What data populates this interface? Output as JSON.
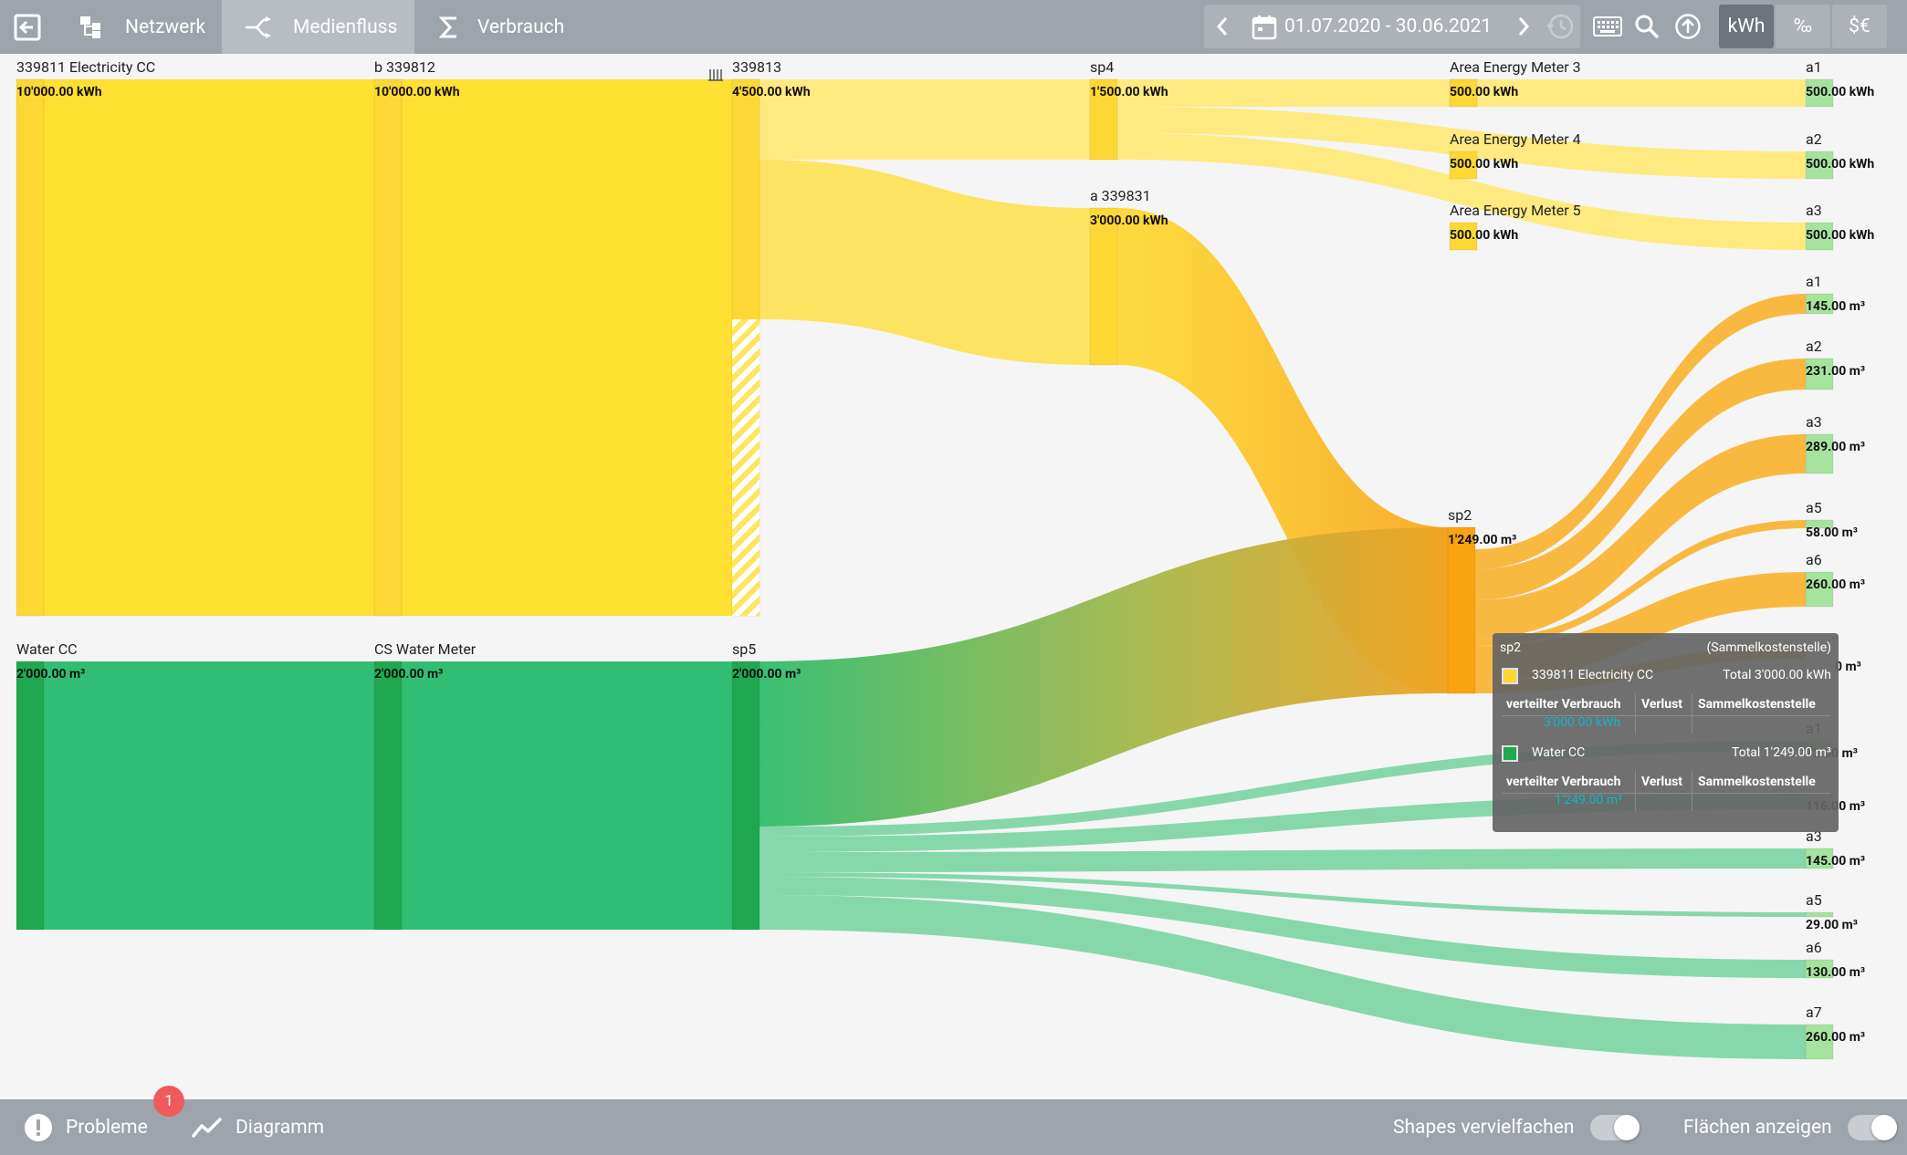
{
  "topbar": {
    "tabs": [
      {
        "label": "Netzwerk",
        "icon": "network-icon"
      },
      {
        "label": "Medienfluss",
        "icon": "flow-icon",
        "active": true
      },
      {
        "label": "Verbrauch",
        "icon": "sigma-icon"
      }
    ],
    "date_range": "01.07.2020 - 30.06.2021",
    "units": [
      {
        "label": "kWh",
        "active": true
      },
      {
        "label": "‰"
      },
      {
        "label": "$€"
      }
    ]
  },
  "chart_data": {
    "type": "sankey",
    "colors": {
      "electricity": "#fdd835",
      "water": "#2ebd6e",
      "sp2": "#f9a825"
    },
    "nodes": [
      {
        "id": "339811",
        "label": "339811 Electricity CC",
        "value": "10'000.00 kWh"
      },
      {
        "id": "b339812",
        "label": "b 339812",
        "value": "10'000.00 kWh"
      },
      {
        "id": "339813",
        "label": "339813",
        "value": "4'500.00 kWh"
      },
      {
        "id": "sp4",
        "label": "sp4",
        "value": "1'500.00 kWh"
      },
      {
        "id": "a339831",
        "label": "a 339831",
        "value": "3'000.00 kWh"
      },
      {
        "id": "aem3",
        "label": "Area Energy Meter 3",
        "value": "500.00 kWh"
      },
      {
        "id": "aem4",
        "label": "Area Energy Meter 4",
        "value": "500.00 kWh"
      },
      {
        "id": "aem5",
        "label": "Area Energy Meter 5",
        "value": "500.00 kWh"
      },
      {
        "id": "e_a1",
        "label": "a1",
        "value": "500.00 kWh"
      },
      {
        "id": "e_a2",
        "label": "a2",
        "value": "500.00 kWh"
      },
      {
        "id": "e_a3",
        "label": "a3",
        "value": "500.00 kWh"
      },
      {
        "id": "wcc",
        "label": "Water CC",
        "value": "2'000.00 m³"
      },
      {
        "id": "cswm",
        "label": "CS Water Meter",
        "value": "2'000.00 m³"
      },
      {
        "id": "sp5",
        "label": "sp5",
        "value": "2'000.00 m³"
      },
      {
        "id": "sp2",
        "label": "sp2",
        "value": "1'249.00 m³"
      },
      {
        "id": "s_a1",
        "label": "a1",
        "value": "145.00 m³"
      },
      {
        "id": "s_a2",
        "label": "a2",
        "value": "231.00 m³"
      },
      {
        "id": "s_a3",
        "label": "a3",
        "value": "289.00 m³"
      },
      {
        "id": "s_a5",
        "label": "a5",
        "value": "58.00 m³"
      },
      {
        "id": "s_a6",
        "label": "a6",
        "value": "260.00 m³"
      },
      {
        "id": "s_hidden",
        "label": "",
        "value": "0 m³"
      },
      {
        "id": "w_a1",
        "label": "a1",
        "value": "72.00 m³"
      },
      {
        "id": "w_a2",
        "label": "",
        "value": "116.00 m³"
      },
      {
        "id": "w_a3",
        "label": "a3",
        "value": "145.00 m³"
      },
      {
        "id": "w_a5",
        "label": "a5",
        "value": "29.00 m³"
      },
      {
        "id": "w_a6",
        "label": "a6",
        "value": "130.00 m³"
      },
      {
        "id": "w_a7",
        "label": "a7",
        "value": "260.00 m³"
      }
    ],
    "links": [
      {
        "source": "339811",
        "target": "b339812",
        "value": 10000,
        "unit": "kWh"
      },
      {
        "source": "b339812",
        "target": "339813",
        "value": 4500,
        "unit": "kWh"
      },
      {
        "source": "339813",
        "target": "sp4",
        "value": 1500,
        "unit": "kWh"
      },
      {
        "source": "339813",
        "target": "a339831",
        "value": 3000,
        "unit": "kWh"
      },
      {
        "source": "sp4",
        "target": "aem3",
        "value": 500,
        "unit": "kWh"
      },
      {
        "source": "sp4",
        "target": "aem4",
        "value": 500,
        "unit": "kWh"
      },
      {
        "source": "sp4",
        "target": "aem5",
        "value": 500,
        "unit": "kWh"
      },
      {
        "source": "aem3",
        "target": "e_a1",
        "value": 500,
        "unit": "kWh"
      },
      {
        "source": "aem4",
        "target": "e_a2",
        "value": 500,
        "unit": "kWh"
      },
      {
        "source": "aem5",
        "target": "e_a3",
        "value": 500,
        "unit": "kWh"
      },
      {
        "source": "a339831",
        "target": "sp2",
        "value": 3000,
        "unit": "kWh"
      },
      {
        "source": "wcc",
        "target": "cswm",
        "value": 2000,
        "unit": "m³"
      },
      {
        "source": "cswm",
        "target": "sp5",
        "value": 2000,
        "unit": "m³"
      },
      {
        "source": "sp5",
        "target": "sp2",
        "value": 1249,
        "unit": "m³"
      },
      {
        "source": "sp2",
        "target": "s_a1",
        "value": 145,
        "unit": "m³"
      },
      {
        "source": "sp2",
        "target": "s_a2",
        "value": 231,
        "unit": "m³"
      },
      {
        "source": "sp2",
        "target": "s_a3",
        "value": 289,
        "unit": "m³"
      },
      {
        "source": "sp2",
        "target": "s_a5",
        "value": 58,
        "unit": "m³"
      },
      {
        "source": "sp2",
        "target": "s_a6",
        "value": 260,
        "unit": "m³"
      },
      {
        "source": "sp5",
        "target": "w_a1",
        "value": 72,
        "unit": "m³"
      },
      {
        "source": "sp5",
        "target": "w_a2",
        "value": 116,
        "unit": "m³"
      },
      {
        "source": "sp5",
        "target": "w_a3",
        "value": 145,
        "unit": "m³"
      },
      {
        "source": "sp5",
        "target": "w_a5",
        "value": 29,
        "unit": "m³"
      },
      {
        "source": "sp5",
        "target": "w_a6",
        "value": 130,
        "unit": "m³"
      },
      {
        "source": "sp5",
        "target": "w_a7",
        "value": 260,
        "unit": "m³"
      }
    ]
  },
  "tooltip": {
    "title": "sp2",
    "type": "(Sammelkostenstelle)",
    "columns": [
      "verteilter Verbrauch",
      "Verlust",
      "Sammelkostenstelle"
    ],
    "sections": [
      {
        "name": "339811 Electricity CC",
        "total": "Total 3'000.00 kWh",
        "value": "3'000.00 kWh",
        "color": "#fdd835"
      },
      {
        "name": "Water CC",
        "total": "Total 1'249.00 m³",
        "value": "1'249.00 m³",
        "color": "#1fa84f"
      }
    ]
  },
  "bottombar": {
    "problems_label": "Probleme",
    "problems_count": "1",
    "diagram_label": "Diagramm",
    "shapes_label": "Shapes vervielfachen",
    "areas_label": "Flächen anzeigen"
  }
}
